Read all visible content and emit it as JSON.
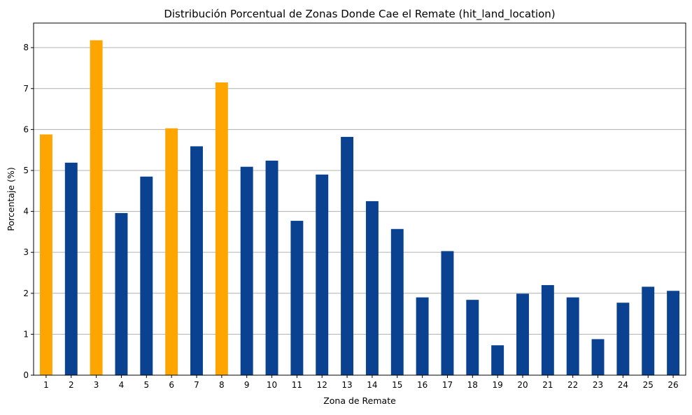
{
  "chart_data": {
    "type": "bar",
    "title": "Distribución Porcentual de Zonas Donde Cae el Remate (hit_land_location)",
    "xlabel": "Zona de Remate",
    "ylabel": "Porcentaje (%)",
    "categories": [
      "1",
      "2",
      "3",
      "4",
      "5",
      "6",
      "7",
      "8",
      "9",
      "10",
      "11",
      "12",
      "13",
      "14",
      "15",
      "16",
      "17",
      "18",
      "19",
      "20",
      "21",
      "22",
      "23",
      "24",
      "25",
      "26"
    ],
    "values": [
      5.88,
      5.19,
      8.18,
      3.96,
      4.85,
      6.03,
      5.59,
      7.15,
      5.09,
      5.24,
      3.77,
      4.9,
      5.82,
      4.25,
      3.57,
      1.9,
      3.03,
      1.84,
      0.73,
      1.99,
      2.2,
      1.9,
      0.88,
      1.77,
      2.16,
      2.06
    ],
    "highlighted_categories": [
      "1",
      "3",
      "6",
      "8"
    ],
    "ylim": [
      0,
      8.6
    ],
    "yticks": [
      0,
      1,
      2,
      3,
      4,
      5,
      6,
      7,
      8
    ],
    "grid": "y",
    "colors": {
      "default_bar": "#0a4191",
      "highlight_bar": "#ffa500",
      "grid": "#b0b0b0"
    }
  }
}
